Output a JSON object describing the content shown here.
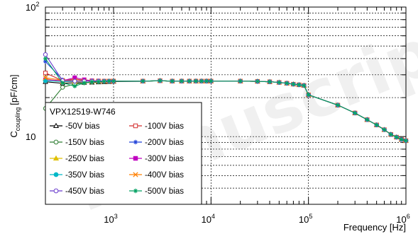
{
  "chart_data": {
    "type": "line",
    "title": "",
    "xlabel": "Frequency [Hz]",
    "ylabel_main": "C",
    "ylabel_sub": "coupling",
    "ylabel_unit": "[pF/cm]",
    "xscale": "log",
    "yscale": "log",
    "xlim": [
      200,
      1000000
    ],
    "ylim": [
      3,
      100
    ],
    "x_major_ticks": [
      1000,
      10000,
      100000,
      1000000
    ],
    "x_tick_labels": [
      {
        "base": "10",
        "exp": "3"
      },
      {
        "base": "10",
        "exp": "4"
      },
      {
        "base": "10",
        "exp": "5"
      },
      {
        "base": "10",
        "exp": "6"
      }
    ],
    "y_major_ticks": [
      10,
      100
    ],
    "y_tick_labels": [
      "10",
      "10"
    ],
    "y_tick_exps": [
      "",
      "2"
    ],
    "grid": true,
    "legend": {
      "title": "VPX12519-W746",
      "placement": "bottom-left",
      "columns": 2
    },
    "x": [
      200,
      300,
      400,
      500,
      600,
      700,
      800,
      900,
      1000,
      2000,
      3000,
      4000,
      5000,
      6000,
      7000,
      8000,
      9000,
      10000,
      20000,
      30000,
      40000,
      50000,
      60000,
      70000,
      80000,
      90000,
      100000,
      200000,
      300000,
      400000,
      500000,
      600000,
      700000,
      800000,
      900000,
      1000000
    ],
    "tail": [
      27,
      26.8,
      26.8,
      26.8,
      26.8,
      26.8,
      26.8,
      26.8,
      26.8,
      26.7,
      26.5,
      26.2,
      25.8,
      25.4,
      25.1,
      24.8,
      21,
      17.5,
      15.2,
      13.5,
      12.3,
      11.3,
      10.4,
      9.9,
      9.5,
      9.3
    ],
    "series": [
      {
        "name": "-50V bias",
        "color": "#000000",
        "marker": "triangle-open",
        "head": [
          26.5,
          25.8,
          26.0,
          26.1,
          26.2,
          26.3,
          26.4,
          26.5,
          26.6,
          26.7
        ]
      },
      {
        "name": "-100V bias",
        "color": "#d32f2f",
        "marker": "square-open",
        "head": [
          31.0,
          27.0,
          27.8,
          27.2,
          27.0,
          26.9,
          26.8,
          26.8,
          26.8,
          26.8
        ]
      },
      {
        "name": "-150V bias",
        "color": "#2e7d32",
        "marker": "circle-open",
        "head": [
          16.5,
          24.0,
          25.5,
          26.0,
          26.3,
          26.4,
          26.5,
          26.6,
          26.7,
          26.8
        ]
      },
      {
        "name": "-200V bias",
        "color": "#1e40d8",
        "marker": "star",
        "head": [
          38.0,
          27.5,
          27.0,
          26.9,
          26.8,
          26.8,
          26.8,
          26.8,
          26.8,
          26.8
        ]
      },
      {
        "name": "-250V bias",
        "color": "#e0c000",
        "marker": "triangle",
        "head": [
          28.0,
          26.5,
          26.6,
          26.7,
          26.8,
          26.8,
          26.8,
          26.8,
          26.8,
          26.8
        ]
      },
      {
        "name": "-300V bias",
        "color": "#c000c0",
        "marker": "square",
        "head": [
          27.5,
          27.0,
          28.5,
          27.5,
          27.0,
          26.9,
          26.8,
          26.8,
          26.8,
          26.8
        ]
      },
      {
        "name": "-350V bias",
        "color": "#00b8c8",
        "marker": "circle",
        "head": [
          27.0,
          26.6,
          26.7,
          26.8,
          26.8,
          26.8,
          26.8,
          26.8,
          26.8,
          26.8
        ]
      },
      {
        "name": "-400V bias",
        "color": "#ff8000",
        "marker": "cross",
        "head": [
          28.5,
          27.2,
          27.0,
          26.9,
          26.8,
          26.8,
          26.8,
          26.8,
          26.8,
          26.8
        ]
      },
      {
        "name": "-450V bias",
        "color": "#6a3ccc",
        "marker": "circle-open",
        "head": [
          43.0,
          27.0,
          26.8,
          26.8,
          26.8,
          26.8,
          26.8,
          26.8,
          26.8,
          26.8
        ]
      },
      {
        "name": "-500V bias",
        "color": "#00a060",
        "marker": "star",
        "head": [
          40.0,
          26.0,
          24.5,
          26.0,
          26.5,
          26.6,
          26.7,
          26.8,
          26.8,
          26.8
        ]
      }
    ]
  },
  "watermark": {
    "text": "Manuscript"
  }
}
